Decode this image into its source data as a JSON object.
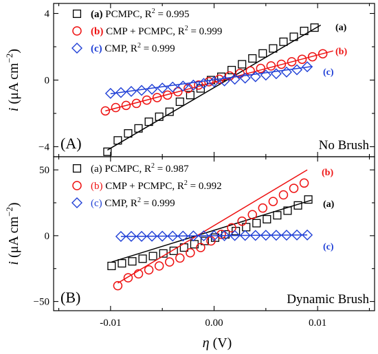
{
  "xlabel_symbol": "η",
  "xlabel_unit": " (V)",
  "chart_data": [
    {
      "type": "scatter",
      "panel_label": "(A)",
      "condition_label": "No Brush",
      "ylabel": {
        "var": "i",
        "unit": "(μA cm",
        "exp": "−2",
        "close": ")"
      },
      "xlim": [
        -0.0155,
        0.0155
      ],
      "ylim": [
        -4.6,
        4.6
      ],
      "xticks": [
        -0.01,
        0.0,
        0.01
      ],
      "yticks": [
        -4,
        0,
        4
      ],
      "ytick_labels": [
        "−4",
        "0",
        "4"
      ],
      "grid": false,
      "legend_position": "top-left",
      "series": [
        {
          "id": "a",
          "name_prefix": "(a)",
          "name": " PCMPC, R",
          "r2": " = 0.995",
          "bold_prefix": true,
          "marker": "square",
          "color": "#000000",
          "end_label": "(a)",
          "x": [
            -0.0103,
            -0.0093,
            -0.0083,
            -0.0073,
            -0.0063,
            -0.0053,
            -0.0043,
            -0.0033,
            -0.0023,
            -0.0013,
            -0.0003,
            0.0007,
            0.0017,
            0.0027,
            0.0037,
            0.0047,
            0.0057,
            0.0067,
            0.0077,
            0.0087,
            0.0097
          ],
          "y": [
            -4.3,
            -3.62,
            -3.2,
            -2.9,
            -2.5,
            -2.2,
            -1.9,
            -1.3,
            -0.9,
            -0.5,
            0.0,
            0.2,
            0.6,
            0.95,
            1.3,
            1.6,
            1.9,
            2.3,
            2.6,
            2.95,
            3.15
          ],
          "fit": {
            "x": [
              -0.0103,
              0.0103
            ],
            "y": [
              -4.2,
              3.3
            ]
          }
        },
        {
          "id": "b",
          "name_prefix": "(b)",
          "name": " CMP + PCMPC, R",
          "r2": " = 0.999",
          "bold_prefix": true,
          "marker": "circle",
          "color": "#ee1111",
          "end_label": "(b)",
          "x": [
            -0.0105,
            -0.0095,
            -0.0085,
            -0.0075,
            -0.0065,
            -0.0055,
            -0.0045,
            -0.0035,
            -0.0025,
            -0.0015,
            -0.0005,
            0.0005,
            0.0015,
            0.0025,
            0.0035,
            0.0045,
            0.0055,
            0.0065,
            0.0075,
            0.0085,
            0.0095,
            0.0105
          ],
          "y": [
            -1.85,
            -1.65,
            -1.52,
            -1.4,
            -1.2,
            -1.05,
            -0.9,
            -0.7,
            -0.5,
            -0.3,
            -0.1,
            0.05,
            0.25,
            0.4,
            0.55,
            0.7,
            0.85,
            0.95,
            1.1,
            1.25,
            1.4,
            1.58
          ],
          "fit": {
            "x": [
              -0.0105,
              0.0115
            ],
            "y": [
              -1.85,
              1.75
            ]
          }
        },
        {
          "id": "c",
          "name_prefix": "(c)",
          "name": " CMP, R",
          "r2": " = 0.999",
          "bold_prefix": true,
          "marker": "diamond",
          "color": "#1f3fd6",
          "end_label": "(c)",
          "x": [
            -0.01,
            -0.009,
            -0.008,
            -0.007,
            -0.006,
            -0.005,
            -0.004,
            -0.003,
            -0.002,
            -0.001,
            0.0,
            0.001,
            0.002,
            0.003,
            0.004,
            0.005,
            0.006,
            0.007,
            0.008,
            0.009
          ],
          "y": [
            -0.8,
            -0.75,
            -0.68,
            -0.62,
            -0.55,
            -0.48,
            -0.42,
            -0.36,
            -0.3,
            -0.2,
            -0.1,
            -0.05,
            0.05,
            0.12,
            0.2,
            0.3,
            0.38,
            0.48,
            0.62,
            0.8
          ],
          "fit": {
            "x": [
              -0.01,
              0.0095
            ],
            "y": [
              -0.82,
              0.82
            ]
          }
        }
      ]
    },
    {
      "type": "scatter",
      "panel_label": "(B)",
      "condition_label": "Dynamic Brush",
      "ylabel": {
        "var": "i",
        "unit": "(μA cm",
        "exp": "−2",
        "close": ")"
      },
      "xlim": [
        -0.0155,
        0.0155
      ],
      "ylim": [
        -57,
        60
      ],
      "xticks": [
        -0.01,
        0.0,
        0.01
      ],
      "xtick_labels": [
        "-0.01",
        "0.00",
        "0.01"
      ],
      "yticks": [
        -50,
        0,
        50
      ],
      "ytick_labels": [
        "−50",
        "0",
        "50"
      ],
      "grid": false,
      "legend_position": "top-left",
      "series": [
        {
          "id": "a",
          "name_prefix": "(a)",
          "name": " PCMPC, R",
          "r2": " = 0.987",
          "bold_prefix": false,
          "marker": "square",
          "color": "#000000",
          "end_label": "(a)",
          "x": [
            -0.0099,
            -0.0089,
            -0.0079,
            -0.0069,
            -0.0059,
            -0.0049,
            -0.0039,
            -0.0029,
            -0.0019,
            -0.0009,
            0.0001,
            0.0011,
            0.0021,
            0.0031,
            0.0041,
            0.0051,
            0.0061,
            0.0071,
            0.0081,
            0.0091
          ],
          "y": [
            -23,
            -21,
            -19.5,
            -17.5,
            -15.5,
            -13.5,
            -11.5,
            -9,
            -6.5,
            -4,
            -1.5,
            1,
            3.5,
            6.5,
            9.5,
            12.5,
            15.5,
            19,
            23,
            27.5
          ],
          "fit": {
            "x": [
              -0.0099,
              0.0094
            ],
            "y": [
              -20,
              27
            ]
          }
        },
        {
          "id": "b",
          "name_prefix": "(b)",
          "name": " CMP + PCMPC, R",
          "r2": " = 0.992",
          "bold_prefix": false,
          "marker": "circle",
          "color": "#ee1111",
          "end_label": "(b)",
          "x": [
            -0.0093,
            -0.0083,
            -0.0073,
            -0.0063,
            -0.0053,
            -0.0043,
            -0.0033,
            -0.0023,
            -0.0013,
            -0.0003,
            0.0007,
            0.0017,
            0.0027,
            0.0037,
            0.0047,
            0.0057,
            0.0067,
            0.0077,
            0.0087
          ],
          "y": [
            -38,
            -32,
            -29,
            -26,
            -23,
            -20,
            -17,
            -13,
            -9,
            -4,
            1,
            6,
            11,
            16,
            21,
            26,
            31,
            36,
            40
          ],
          "fit": {
            "x": [
              -0.0093,
              0.009
            ],
            "y": [
              -36,
              50
            ]
          }
        },
        {
          "id": "c",
          "name_prefix": "(c)",
          "name": " CMP, R",
          "r2": " = 0.999",
          "bold_prefix": false,
          "marker": "diamond",
          "color": "#1f3fd6",
          "end_label": "(c)",
          "x": [
            -0.009,
            -0.008,
            -0.007,
            -0.006,
            -0.005,
            -0.004,
            -0.003,
            -0.002,
            -0.001,
            0.0,
            0.001,
            0.002,
            0.003,
            0.004,
            0.005,
            0.006,
            0.007,
            0.008,
            0.009
          ],
          "y": [
            -0.6,
            -0.5,
            -0.5,
            -0.4,
            -0.4,
            -0.3,
            -0.3,
            -0.2,
            -0.1,
            0.0,
            0.0,
            0.1,
            0.2,
            0.2,
            0.3,
            0.3,
            0.4,
            0.5,
            0.5
          ],
          "fit": {
            "x": [
              -0.009,
              0.009
            ],
            "y": [
              -0.6,
              0.6
            ]
          }
        }
      ]
    }
  ]
}
